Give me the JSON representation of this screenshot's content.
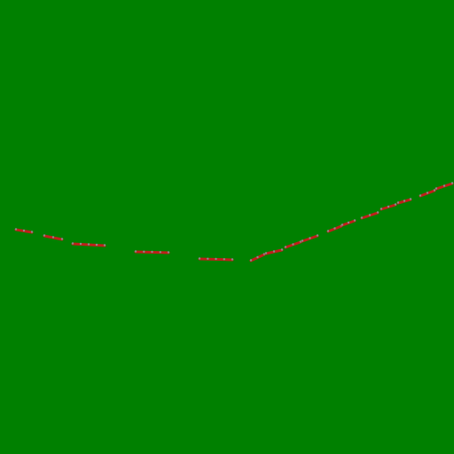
{
  "scene": {
    "background_color": "#008000",
    "track_color": "#c0201a",
    "stud_color": "#8a8a8a",
    "hole_color": "#0a5a0a",
    "segment_count": 20
  }
}
